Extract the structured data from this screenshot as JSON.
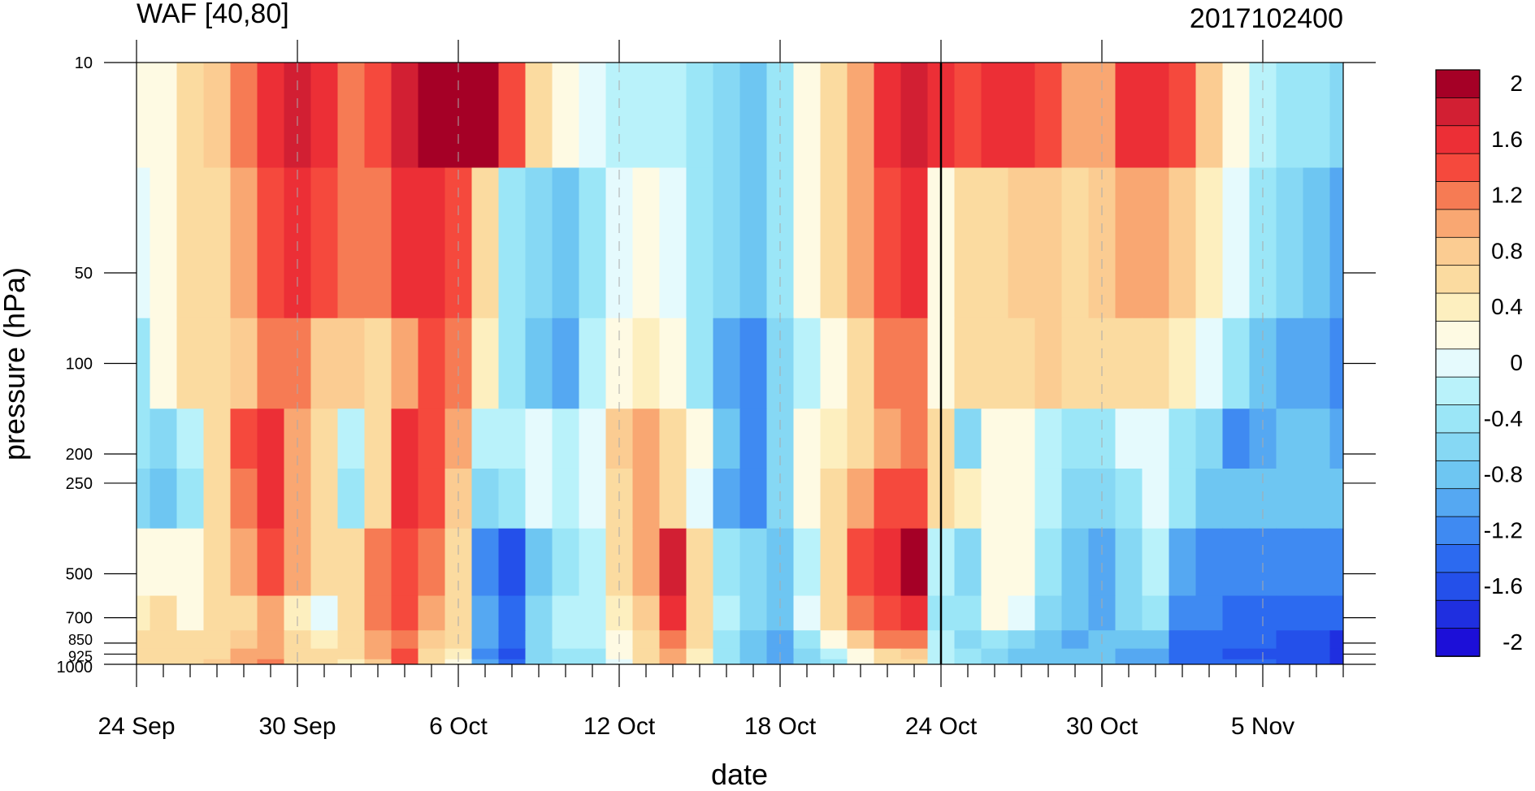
{
  "chart_data": {
    "type": "heatmap",
    "title": "WAF [40,80]",
    "subtitle": "2017102400",
    "xlabel": "date",
    "ylabel": "pressure (hPa)",
    "x_tick_labels": [
      "24 Sep",
      "30 Sep",
      "6 Oct",
      "12 Oct",
      "18 Oct",
      "24 Oct",
      "30 Oct",
      "5 Nov"
    ],
    "y_tick_labels": [
      "10",
      "50",
      "100",
      "200",
      "250",
      "500",
      "700",
      "850",
      "925",
      "1000"
    ],
    "y_tick_values": [
      10,
      50,
      100,
      200,
      250,
      500,
      700,
      850,
      925,
      1000
    ],
    "ylim": [
      1000,
      10
    ],
    "y_scale": "log",
    "grid": false,
    "vertical_marker": "24 Oct",
    "colorbar": {
      "labels": [
        "2",
        "1.6",
        "1.2",
        "0.8",
        "0.4",
        "0",
        "-0.4",
        "-0.8",
        "-1.2",
        "-1.6",
        "-2"
      ],
      "levels": [
        2,
        1.8,
        1.6,
        1.4,
        1.2,
        1.0,
        0.8,
        0.6,
        0.4,
        0.2,
        0,
        -0.2,
        -0.4,
        -0.6,
        -0.8,
        -1.0,
        -1.2,
        -1.4,
        -1.6,
        -1.8,
        -2.0
      ],
      "colors": [
        "#a50026",
        "#d21f33",
        "#ec2f36",
        "#f5493d",
        "#f67b54",
        "#f9a772",
        "#fbcc92",
        "#fbdba0",
        "#fdefbf",
        "#fefae3",
        "#e5fafd",
        "#b9f2fa",
        "#9be6f7",
        "#86d8f4",
        "#6ec6f2",
        "#55a8f2",
        "#3f8af2",
        "#2c6af0",
        "#2450ea",
        "#1f2fe0",
        "#1c0fd8"
      ]
    },
    "day_offsets": [
      0,
      1,
      2,
      3,
      4,
      5,
      6,
      7,
      8,
      9,
      10,
      11,
      12,
      13,
      14,
      15,
      16,
      17,
      18,
      19,
      20,
      21,
      22,
      23,
      24,
      25,
      26,
      27,
      28,
      29,
      30,
      31,
      32,
      33,
      34,
      35,
      36,
      37,
      38,
      39,
      40,
      41,
      42,
      43,
      44,
      45
    ],
    "series": [
      {
        "name": "10",
        "values": [
          0.1,
          0.3,
          0.6,
          0.8,
          1.1,
          1.5,
          1.7,
          1.5,
          1.1,
          1.3,
          1.7,
          1.9,
          2.1,
          1.9,
          1.4,
          0.7,
          0.1,
          -0.1,
          -0.2,
          -0.2,
          -0.3,
          -0.4,
          -0.6,
          -0.8,
          -0.4,
          0.2,
          0.6,
          0.9,
          1.5,
          1.8,
          1.6,
          1.4,
          1.5,
          1.6,
          1.3,
          0.9,
          1.0,
          1.5,
          1.6,
          1.3,
          0.8,
          0.3,
          -0.2,
          -0.4,
          -0.5,
          -0.6
        ]
      },
      {
        "name": "50",
        "values": [
          0.0,
          0.3,
          0.6,
          0.7,
          0.9,
          1.4,
          1.6,
          1.4,
          1.1,
          1.2,
          1.5,
          1.6,
          1.4,
          0.6,
          -0.4,
          -0.7,
          -0.8,
          -0.4,
          0.0,
          0.1,
          0.0,
          -0.4,
          -0.7,
          -0.8,
          -0.5,
          0.1,
          0.5,
          0.9,
          1.4,
          1.6,
          0.1,
          0.5,
          0.7,
          0.8,
          0.8,
          0.7,
          0.8,
          0.9,
          1.0,
          0.8,
          0.4,
          0.0,
          -0.4,
          -0.6,
          -0.9,
          -1.1
        ]
      },
      {
        "name": "100",
        "values": [
          -0.4,
          0.3,
          0.5,
          0.6,
          0.8,
          1.1,
          1.2,
          0.8,
          0.8,
          0.6,
          1.0,
          1.4,
          1.2,
          0.4,
          -0.5,
          -0.9,
          -1.0,
          -0.3,
          0.2,
          0.4,
          0.2,
          -0.4,
          -1.0,
          -1.2,
          -0.7,
          -0.2,
          0.3,
          0.7,
          1.1,
          1.2,
          0.3,
          0.5,
          0.6,
          0.7,
          0.8,
          0.6,
          0.5,
          0.6,
          0.6,
          0.4,
          0.0,
          -0.4,
          -0.8,
          -1.0,
          -1.1,
          -1.2
        ]
      },
      {
        "name": "200",
        "values": [
          -0.4,
          -0.6,
          -0.3,
          0.6,
          1.3,
          1.6,
          0.9,
          0.6,
          -0.2,
          0.7,
          1.6,
          1.4,
          1.0,
          -0.2,
          -0.3,
          0.0,
          -0.3,
          -0.1,
          0.8,
          1.0,
          0.6,
          0.2,
          -0.9,
          -1.2,
          -0.6,
          0.1,
          0.4,
          0.6,
          0.9,
          1.1,
          0.6,
          -0.6,
          0.2,
          0.3,
          -0.2,
          -0.5,
          -0.4,
          -0.1,
          0.0,
          -0.4,
          -0.7,
          -1.2,
          -1.0,
          -0.9,
          -0.9,
          -1.0
        ]
      },
      {
        "name": "250",
        "values": [
          -0.6,
          -0.8,
          -0.4,
          0.5,
          1.2,
          1.5,
          1.0,
          0.5,
          -0.4,
          0.6,
          1.5,
          1.3,
          0.8,
          -0.7,
          -0.4,
          0.0,
          -0.2,
          -0.1,
          0.7,
          0.9,
          0.5,
          -0.1,
          -1.1,
          -1.3,
          -0.6,
          0.2,
          0.6,
          1.0,
          1.4,
          1.3,
          0.5,
          0.4,
          0.3,
          0.2,
          -0.3,
          -0.6,
          -0.6,
          -0.4,
          0.0,
          -0.5,
          -0.8,
          -0.9,
          -0.9,
          -0.8,
          -0.8,
          -0.8
        ]
      },
      {
        "name": "500",
        "values": [
          0.2,
          0.3,
          0.1,
          0.7,
          1.0,
          1.3,
          0.9,
          0.5,
          0.7,
          1.2,
          1.4,
          1.1,
          0.7,
          -1.2,
          -1.6,
          -0.8,
          -0.4,
          -0.3,
          0.5,
          1.0,
          1.7,
          0.6,
          -0.4,
          -0.6,
          -0.8,
          -0.2,
          0.7,
          1.3,
          1.6,
          1.9,
          -0.3,
          -0.6,
          0.3,
          0.1,
          -0.5,
          -0.8,
          -1.1,
          -0.6,
          -0.2,
          -1.0,
          -1.2,
          -1.2,
          -1.3,
          -1.3,
          -1.3,
          -1.3
        ]
      },
      {
        "name": "700",
        "values": [
          0.4,
          0.5,
          0.3,
          0.5,
          0.6,
          0.9,
          0.4,
          0.0,
          0.6,
          1.1,
          1.3,
          0.9,
          0.6,
          -1.1,
          -1.4,
          -0.6,
          -0.3,
          -0.2,
          0.4,
          0.8,
          1.5,
          0.6,
          -0.3,
          -0.6,
          -0.9,
          -0.1,
          0.6,
          1.1,
          1.4,
          1.6,
          -0.4,
          -0.5,
          0.1,
          0.0,
          -0.6,
          -0.8,
          -1.0,
          -0.7,
          -0.4,
          -1.2,
          -1.3,
          -1.4,
          -1.4,
          -1.4,
          -1.5,
          -1.5
        ]
      },
      {
        "name": "850",
        "values": [
          0.5,
          0.6,
          0.6,
          0.6,
          0.8,
          0.9,
          0.7,
          0.4,
          0.6,
          1.0,
          1.2,
          0.8,
          0.5,
          -1.1,
          -1.5,
          -0.6,
          -0.3,
          -0.2,
          0.3,
          0.7,
          1.2,
          0.5,
          -0.4,
          -0.8,
          -1.0,
          -0.4,
          0.3,
          0.8,
          1.1,
          1.2,
          -0.3,
          -0.6,
          -0.5,
          -0.7,
          -0.9,
          -1.0,
          -0.9,
          -0.9,
          -0.9,
          -1.4,
          -1.4,
          -1.5,
          -1.5,
          -1.6,
          -1.7,
          -1.8
        ]
      },
      {
        "name": "925",
        "values": [
          0.5,
          0.6,
          0.7,
          0.7,
          0.9,
          1.0,
          0.7,
          0.5,
          0.5,
          0.9,
          1.3,
          0.6,
          0.4,
          -1.2,
          -1.6,
          -0.7,
          -0.4,
          -0.4,
          0.1,
          0.6,
          1.0,
          0.4,
          -0.5,
          -0.9,
          -1.1,
          -0.6,
          -0.3,
          0.3,
          0.7,
          0.8,
          -0.2,
          -0.5,
          -0.7,
          -0.9,
          -0.9,
          -0.9,
          -0.9,
          -1.0,
          -1.1,
          -1.5,
          -1.5,
          -1.6,
          -1.6,
          -1.7,
          -1.7,
          -1.9
        ]
      },
      {
        "name": "1000",
        "values": [
          0.5,
          0.6,
          0.7,
          0.8,
          1.0,
          1.1,
          0.7,
          0.5,
          0.4,
          0.8,
          1.4,
          0.5,
          0.3,
          -1.0,
          -1.5,
          -0.6,
          -0.4,
          -0.4,
          0.0,
          0.5,
          0.9,
          0.4,
          -0.5,
          -0.9,
          -1.0,
          -0.6,
          -0.4,
          0.1,
          0.5,
          0.6,
          -0.2,
          -0.5,
          -0.7,
          -0.8,
          -0.8,
          -0.8,
          -0.8,
          -1.0,
          -1.1,
          -1.4,
          -1.4,
          -1.5,
          -1.5,
          -1.6,
          -1.6,
          -1.8
        ]
      }
    ]
  }
}
